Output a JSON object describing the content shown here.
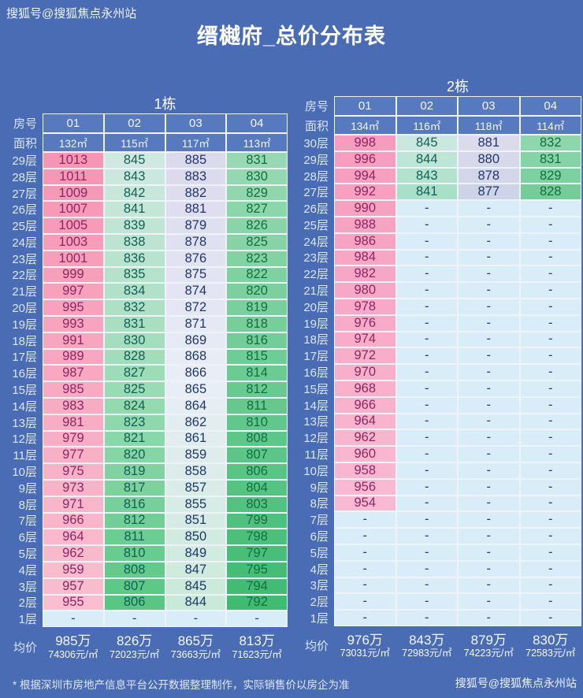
{
  "watermark_top": "搜狐号@搜狐焦点永州站",
  "title": "缙樾府_总价分布表",
  "footer": {
    "note": "* 根据深圳市房地产信息平台公开数据整理制作，实际销售价以房企为准",
    "watermark": "搜狐号@搜狐焦点永州站"
  },
  "chart_data": [
    {
      "type": "table",
      "title": "1栋",
      "row_header": "房号",
      "area_header": "面积",
      "avg_header": "均价",
      "rooms": [
        "01",
        "02",
        "03",
        "04"
      ],
      "areas": [
        "132㎡",
        "115㎡",
        "117㎡",
        "113㎡"
      ],
      "floors": [
        [
          "29层",
          "1013",
          "845",
          "885",
          "831"
        ],
        [
          "28层",
          "1011",
          "843",
          "883",
          "830"
        ],
        [
          "27层",
          "1009",
          "842",
          "882",
          "829"
        ],
        [
          "26层",
          "1007",
          "841",
          "881",
          "827"
        ],
        [
          "25层",
          "1005",
          "839",
          "879",
          "826"
        ],
        [
          "24层",
          "1003",
          "838",
          "878",
          "825"
        ],
        [
          "23层",
          "1001",
          "836",
          "876",
          "823"
        ],
        [
          "22层",
          "999",
          "835",
          "875",
          "822"
        ],
        [
          "21层",
          "997",
          "834",
          "874",
          "820"
        ],
        [
          "20层",
          "995",
          "832",
          "872",
          "819"
        ],
        [
          "19层",
          "993",
          "831",
          "871",
          "818"
        ],
        [
          "18层",
          "991",
          "830",
          "869",
          "816"
        ],
        [
          "17层",
          "989",
          "828",
          "868",
          "815"
        ],
        [
          "16层",
          "987",
          "827",
          "866",
          "814"
        ],
        [
          "15层",
          "985",
          "825",
          "865",
          "812"
        ],
        [
          "14层",
          "983",
          "824",
          "864",
          "811"
        ],
        [
          "13层",
          "981",
          "823",
          "862",
          "810"
        ],
        [
          "12层",
          "979",
          "821",
          "861",
          "808"
        ],
        [
          "11层",
          "977",
          "820",
          "859",
          "807"
        ],
        [
          "10层",
          "975",
          "819",
          "858",
          "806"
        ],
        [
          "9层",
          "973",
          "817",
          "857",
          "804"
        ],
        [
          "8层",
          "971",
          "816",
          "855",
          "803"
        ],
        [
          "7层",
          "966",
          "812",
          "851",
          "799"
        ],
        [
          "6层",
          "964",
          "811",
          "850",
          "798"
        ],
        [
          "5层",
          "962",
          "810",
          "849",
          "797"
        ],
        [
          "4层",
          "959",
          "808",
          "847",
          "795"
        ],
        [
          "3层",
          "957",
          "807",
          "845",
          "794"
        ],
        [
          "2层",
          "955",
          "806",
          "844",
          "792"
        ],
        [
          "1层",
          "-",
          "-",
          "-",
          "-"
        ]
      ],
      "averages": [
        [
          "985万",
          "74306元/㎡"
        ],
        [
          "826万",
          "72023元/㎡"
        ],
        [
          "865万",
          "73663元/㎡"
        ],
        [
          "813万",
          "71623元/㎡"
        ]
      ]
    },
    {
      "type": "table",
      "title": "2栋",
      "row_header": "房号",
      "area_header": "面积",
      "avg_header": "均价",
      "rooms": [
        "01",
        "02",
        "03",
        "04"
      ],
      "areas": [
        "134㎡",
        "116㎡",
        "118㎡",
        "114㎡"
      ],
      "floors": [
        [
          "30层",
          "998",
          "845",
          "881",
          "832"
        ],
        [
          "29层",
          "996",
          "844",
          "880",
          "831"
        ],
        [
          "28层",
          "994",
          "843",
          "878",
          "829"
        ],
        [
          "27层",
          "992",
          "841",
          "877",
          "828"
        ],
        [
          "26层",
          "990",
          "-",
          "-",
          "-"
        ],
        [
          "25层",
          "988",
          "-",
          "-",
          "-"
        ],
        [
          "24层",
          "986",
          "-",
          "-",
          "-"
        ],
        [
          "23层",
          "984",
          "-",
          "-",
          "-"
        ],
        [
          "22层",
          "982",
          "-",
          "-",
          "-"
        ],
        [
          "21层",
          "980",
          "-",
          "-",
          "-"
        ],
        [
          "20层",
          "978",
          "-",
          "-",
          "-"
        ],
        [
          "19层",
          "976",
          "-",
          "-",
          "-"
        ],
        [
          "18层",
          "974",
          "-",
          "-",
          "-"
        ],
        [
          "17层",
          "972",
          "-",
          "-",
          "-"
        ],
        [
          "16层",
          "970",
          "-",
          "-",
          "-"
        ],
        [
          "15层",
          "968",
          "-",
          "-",
          "-"
        ],
        [
          "14层",
          "966",
          "-",
          "-",
          "-"
        ],
        [
          "13层",
          "964",
          "-",
          "-",
          "-"
        ],
        [
          "12层",
          "962",
          "-",
          "-",
          "-"
        ],
        [
          "11层",
          "960",
          "-",
          "-",
          "-"
        ],
        [
          "10层",
          "958",
          "-",
          "-",
          "-"
        ],
        [
          "9层",
          "956",
          "-",
          "-",
          "-"
        ],
        [
          "8层",
          "954",
          "-",
          "-",
          "-"
        ],
        [
          "7层",
          "-",
          "-",
          "-",
          "-"
        ],
        [
          "6层",
          "-",
          "-",
          "-",
          "-"
        ],
        [
          "5层",
          "-",
          "-",
          "-",
          "-"
        ],
        [
          "4层",
          "-",
          "-",
          "-",
          "-"
        ],
        [
          "3层",
          "-",
          "-",
          "-",
          "-"
        ],
        [
          "2层",
          "-",
          "-",
          "-",
          "-"
        ],
        [
          "1层",
          "-",
          "-",
          "-",
          "-"
        ]
      ],
      "averages": [
        [
          "976万",
          "73031元/㎡"
        ],
        [
          "843万",
          "72983元/㎡"
        ],
        [
          "879万",
          "74223元/㎡"
        ],
        [
          "830万",
          "72583元/㎡"
        ]
      ]
    }
  ],
  "colors": {
    "background": "#4a6cb4",
    "cell_border": "#eef3fa",
    "header_cell_bg": "#5679c0",
    "dash_bg": "#d9edf8",
    "dash_text": "#25407d",
    "columns": {
      "b1": [
        {
          "ramp": [
            "#f795b4",
            "#f9bed0"
          ],
          "text": "#8e2663"
        },
        {
          "ramp": [
            "#cfe9e1",
            "#9cdcb6",
            "#58c783"
          ],
          "text": "#135f56"
        },
        {
          "ramp": [
            "#dbdaec",
            "#e9eef6",
            "#c9ead8"
          ],
          "text": "#223768"
        },
        {
          "ramp": [
            "#96d9b2",
            "#3fbb72"
          ],
          "text": "#11703f"
        }
      ],
      "b2": [
        {
          "ramp": [
            "#f79cbd",
            "#f8bad2"
          ],
          "text": "#8e2663"
        },
        {
          "ramp": [
            "#cae8dd",
            "#a8dfc8"
          ],
          "text": "#135f56"
        },
        {
          "ramp": [
            "#dcdbec",
            "#ced4e7"
          ],
          "text": "#223768"
        },
        {
          "ramp": [
            "#8ed7ac",
            "#74cd99"
          ],
          "text": "#11703f"
        }
      ]
    }
  }
}
